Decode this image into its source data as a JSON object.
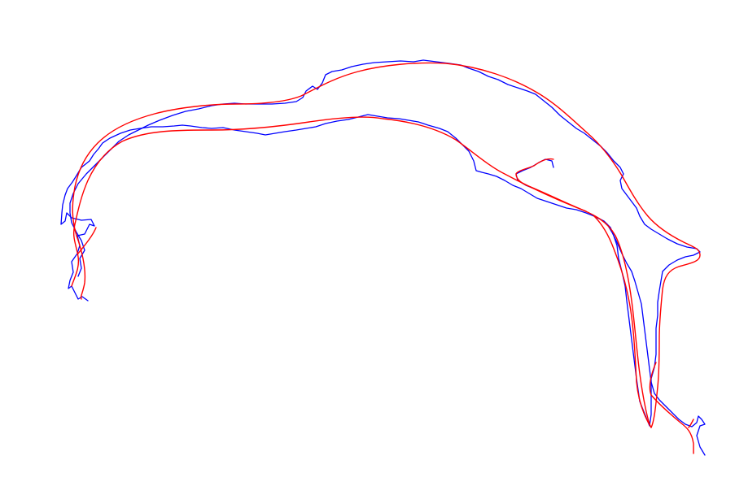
{
  "diagram": {
    "traces": [
      {
        "id": "noisy-trajectory",
        "color": "#0000ff"
      },
      {
        "id": "smoothed-trajectory",
        "color": "#ff0000"
      }
    ]
  }
}
